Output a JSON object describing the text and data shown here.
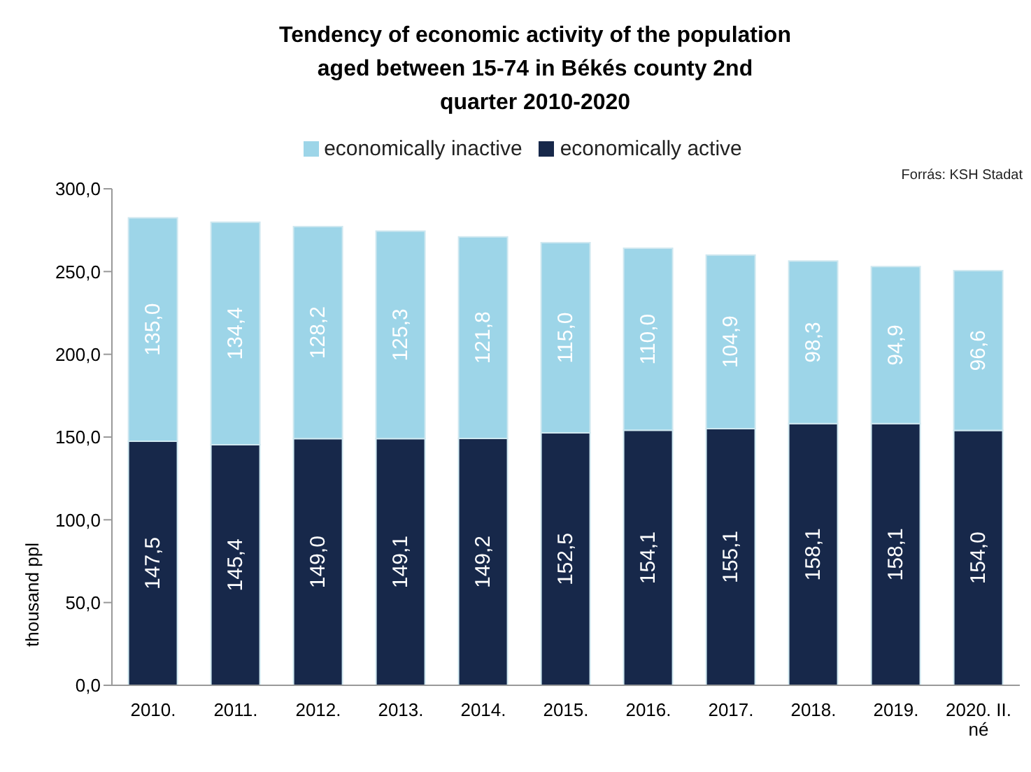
{
  "chart_data": {
    "type": "bar",
    "title": "Tendency of economic activity of the population aged between 15-74 in Békés county 2nd quarter 2010-2020",
    "ylabel": "thousand ppl",
    "annotations": [
      "Forrás: KSH Stadat"
    ],
    "categories": [
      "2010.",
      "2011.",
      "2012.",
      "2013.",
      "2014.",
      "2015.",
      "2016.",
      "2017.",
      "2018.",
      "2019.",
      "2020. II. né"
    ],
    "stacked": true,
    "legend": "top",
    "grid": false,
    "ylim": [
      0,
      300
    ],
    "yticks": [
      {
        "value": 0,
        "label": "0,0"
      },
      {
        "value": 50,
        "label": "50,0"
      },
      {
        "value": 100,
        "label": "100,0"
      },
      {
        "value": 150,
        "label": "150,0"
      },
      {
        "value": 200,
        "label": "200,0"
      },
      {
        "value": 250,
        "label": "250,0"
      },
      {
        "value": 300,
        "label": "300,0"
      }
    ],
    "series": [
      {
        "name": "economically active",
        "color": "#17284a",
        "values": [
          147.5,
          145.4,
          149.0,
          149.1,
          149.2,
          152.5,
          154.1,
          155.1,
          158.1,
          158.1,
          154.0
        ],
        "value_labels": [
          "147,5",
          "145,4",
          "149,0",
          "149,1",
          "149,2",
          "152,5",
          "154,1",
          "155,1",
          "158,1",
          "158,1",
          "154,0"
        ]
      },
      {
        "name": "economically inactive",
        "color": "#9dd5e8",
        "values": [
          135.0,
          134.4,
          128.2,
          125.3,
          121.8,
          115.0,
          110.0,
          104.9,
          98.3,
          94.9,
          96.6
        ],
        "value_labels": [
          "135,0",
          "134,4",
          "128,2",
          "125,3",
          "121,8",
          "115,0",
          "110,0",
          "104,9",
          "98,3",
          "94,9",
          "96,6"
        ]
      }
    ]
  }
}
